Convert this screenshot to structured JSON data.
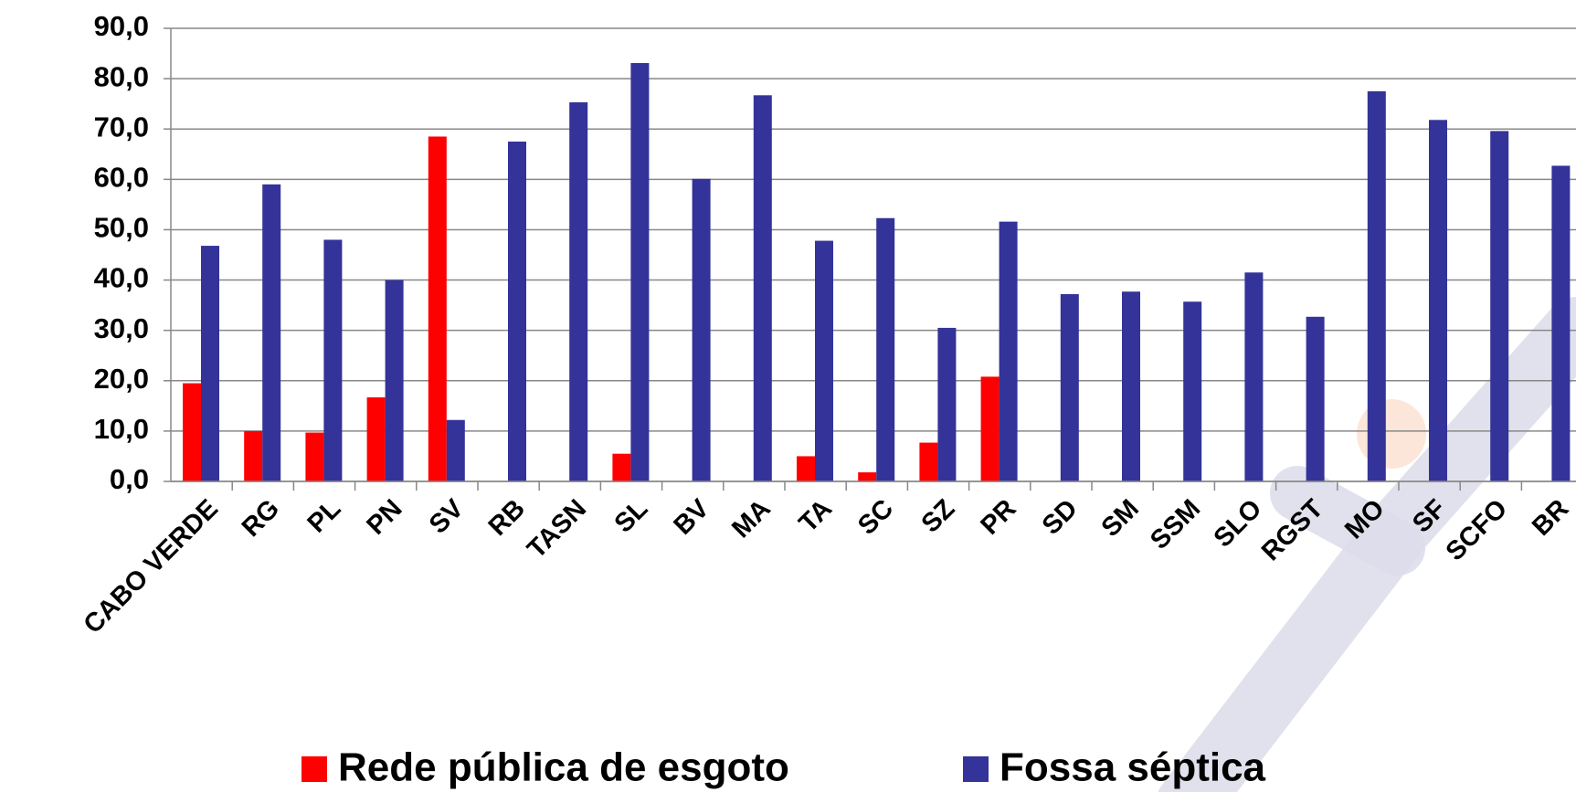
{
  "chart_data": {
    "type": "bar",
    "categories": [
      "CABO VERDE",
      "RG",
      "PL",
      "PN",
      "SV",
      "RB",
      "TASN",
      "SL",
      "BV",
      "MA",
      "TA",
      "SC",
      "SZ",
      "PR",
      "SD",
      "SM",
      "SSM",
      "SLO",
      "RGST",
      "MO",
      "SF",
      "SCFO",
      "BR"
    ],
    "series": [
      {
        "name": "Rede pública de esgoto",
        "color": "#ff0000",
        "values": [
          19.5,
          10,
          9.7,
          16.7,
          68.5,
          0,
          0,
          5.5,
          0,
          0,
          5,
          1.8,
          7.7,
          20.8,
          0,
          0,
          0,
          0,
          0,
          0,
          0,
          0,
          0
        ]
      },
      {
        "name": "Fossa séptica",
        "color": "#333399",
        "values": [
          46.8,
          59,
          48,
          40,
          12.2,
          67.5,
          75.3,
          83.1,
          60.1,
          76.7,
          47.8,
          52.3,
          30.5,
          51.6,
          37.2,
          37.7,
          35.7,
          41.5,
          32.7,
          77.5,
          71.8,
          69.6,
          62.7
        ]
      }
    ],
    "ylim": [
      0,
      90
    ],
    "yticks": [
      {
        "value": 0,
        "label": "0,0"
      },
      {
        "value": 10,
        "label": "10,0"
      },
      {
        "value": 20,
        "label": "20,0"
      },
      {
        "value": 30,
        "label": "30,0"
      },
      {
        "value": 40,
        "label": "40,0"
      },
      {
        "value": 50,
        "label": "50,0"
      },
      {
        "value": 60,
        "label": "60,0"
      },
      {
        "value": 70,
        "label": "70,0"
      },
      {
        "value": 80,
        "label": "80,0"
      },
      {
        "value": 90,
        "label": "90,0"
      }
    ],
    "grid": true,
    "legend": "bottom"
  }
}
